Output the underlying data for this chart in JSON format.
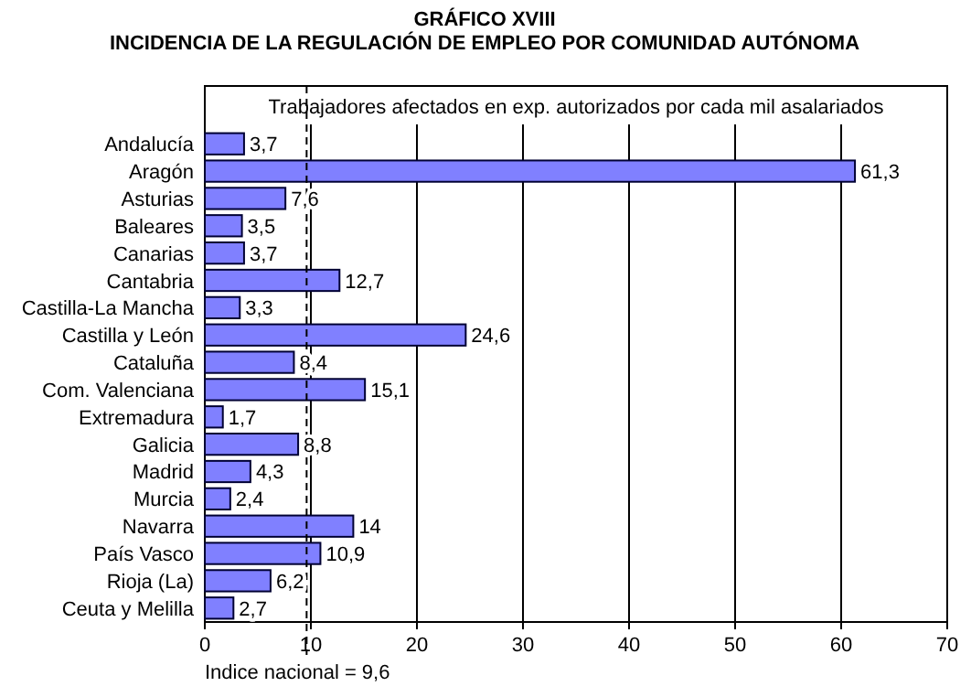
{
  "chart_data": {
    "type": "bar",
    "orientation": "horizontal",
    "title": "GRÁFICO XVIII",
    "subtitle": "INCIDENCIA DE LA REGULACIÓN DE EMPLEO POR COMUNIDAD AUTÓNOMA",
    "annotations": [
      "Trabajadores afectados en exp. autorizados por cada mil asalariados"
    ],
    "categories": [
      "Andalucía",
      "Aragón",
      "Asturias",
      "Baleares",
      "Canarias",
      "Cantabria",
      "Castilla-La Mancha",
      "Castilla y León",
      "Cataluña",
      "Com. Valenciana",
      "Extremadura",
      "Galicia",
      "Madrid",
      "Murcia",
      "Navarra",
      "País Vasco",
      "Rioja (La)",
      "Ceuta y Melilla"
    ],
    "values": [
      3.7,
      61.3,
      7.6,
      3.5,
      3.7,
      12.7,
      3.3,
      24.6,
      8.4,
      15.1,
      1.7,
      8.8,
      4.3,
      2.4,
      14,
      10.9,
      6.2,
      2.7
    ],
    "value_labels": [
      "3,7",
      "61,3",
      "7,6",
      "3,5",
      "3,7",
      "12,7",
      "3,3",
      "24,6",
      "8,4",
      "15,1",
      "1,7",
      "8,8",
      "4,3",
      "2,4",
      "14",
      "10,9",
      "6,2",
      "2,7"
    ],
    "color": "#8080ff",
    "xlim": [
      0,
      70
    ],
    "xticks": [
      0,
      10,
      20,
      30,
      40,
      50,
      60,
      70
    ],
    "grid": "x",
    "ref_lines": [
      {
        "axis": "x",
        "value": 9.6,
        "label": "Indice nacional = 9,6",
        "line_style": "dashed"
      }
    ]
  }
}
